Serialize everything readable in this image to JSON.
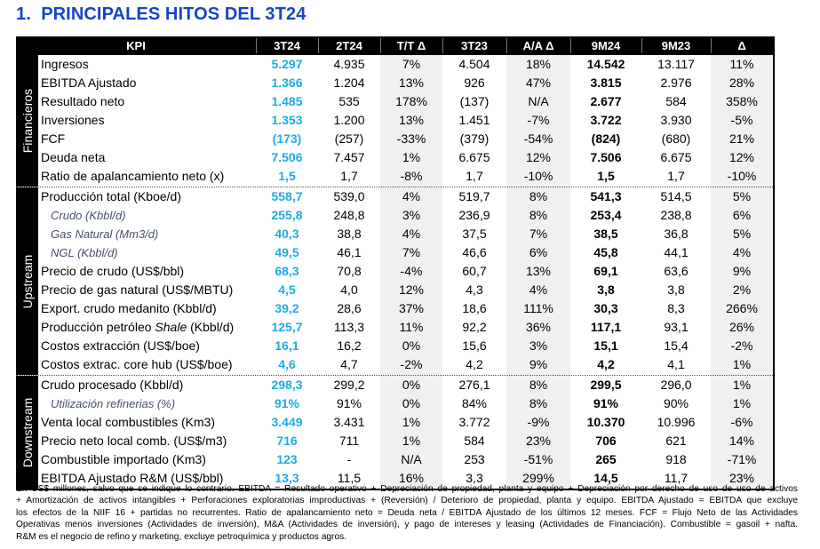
{
  "title": "1.  PRINCIPALES HITOS DEL 3T24",
  "columns": [
    "KPI",
    "3T24",
    "2T24",
    "T/T Δ",
    "3T23",
    "A/A Δ",
    "9M24",
    "9M23",
    "Δ"
  ],
  "sections": [
    {
      "name": "Financieros",
      "rows": [
        {
          "label": "Ingresos",
          "sub": false,
          "values": [
            "5.297",
            "4.935",
            "7%",
            "4.504",
            "18%",
            "14.542",
            "13.117",
            "11%"
          ]
        },
        {
          "label": "EBITDA Ajustado",
          "sub": false,
          "values": [
            "1.366",
            "1.204",
            "13%",
            "926",
            "47%",
            "3.815",
            "2.976",
            "28%"
          ]
        },
        {
          "label": "Resultado neto",
          "sub": false,
          "values": [
            "1.485",
            "535",
            "178%",
            "(137)",
            "N/A",
            "2.677",
            "584",
            "358%"
          ]
        },
        {
          "label": "Inversiones",
          "sub": false,
          "values": [
            "1.353",
            "1.200",
            "13%",
            "1.451",
            "-7%",
            "3.722",
            "3.930",
            "-5%"
          ]
        },
        {
          "label": "FCF",
          "sub": false,
          "values": [
            "(173)",
            "(257)",
            "-33%",
            "(379)",
            "-54%",
            "(824)",
            "(680)",
            "21%"
          ]
        },
        {
          "label": "Deuda neta",
          "sub": false,
          "values": [
            "7.506",
            "7.457",
            "1%",
            "6.675",
            "12%",
            "7.506",
            "6.675",
            "12%"
          ]
        },
        {
          "label": "Ratio de apalancamiento neto (x)",
          "sub": false,
          "values": [
            "1,5",
            "1,7",
            "-8%",
            "1,7",
            "-10%",
            "1,5",
            "1,7",
            "-10%"
          ]
        }
      ]
    },
    {
      "name": "Upstream",
      "rows": [
        {
          "label": "Producción total (Kboe/d)",
          "sub": false,
          "values": [
            "558,7",
            "539,0",
            "4%",
            "519,7",
            "8%",
            "541,3",
            "514,5",
            "5%"
          ]
        },
        {
          "label": "Crudo (Kbbl/d)",
          "sub": true,
          "values": [
            "255,8",
            "248,8",
            "3%",
            "236,9",
            "8%",
            "253,4",
            "238,8",
            "6%"
          ]
        },
        {
          "label": "Gas Natural (Mm3/d)",
          "sub": true,
          "values": [
            "40,3",
            "38,8",
            "4%",
            "37,5",
            "7%",
            "38,5",
            "36,8",
            "5%"
          ]
        },
        {
          "label": "NGL (Kbbl/d)",
          "sub": true,
          "values": [
            "49,5",
            "46,1",
            "7%",
            "46,6",
            "6%",
            "45,8",
            "44,1",
            "4%"
          ]
        },
        {
          "label": "Precio de crudo (US$/bbl)",
          "sub": false,
          "values": [
            "68,3",
            "70,8",
            "-4%",
            "60,7",
            "13%",
            "69,1",
            "63,6",
            "9%"
          ]
        },
        {
          "label": "Precio de gas natural (US$/MBTU)",
          "sub": false,
          "values": [
            "4,5",
            "4,0",
            "12%",
            "4,3",
            "4%",
            "3,8",
            "3,8",
            "2%"
          ]
        },
        {
          "label": "Export. crudo medanito (Kbbl/d)",
          "sub": false,
          "values": [
            "39,2",
            "28,6",
            "37%",
            "18,6",
            "111%",
            "30,3",
            "8,3",
            "266%"
          ]
        },
        {
          "label": "Producción petróleo ",
          "label_italic": "Shale",
          "label_suffix": " (Kbbl/d)",
          "sub": false,
          "values": [
            "125,7",
            "113,3",
            "11%",
            "92,2",
            "36%",
            "117,1",
            "93,1",
            "26%"
          ]
        },
        {
          "label": "Costos extracción (US$/boe)",
          "sub": false,
          "values": [
            "16,1",
            "16,2",
            "0%",
            "15,6",
            "3%",
            "15,1",
            "15,4",
            "-2%"
          ]
        },
        {
          "label": "Costos extrac. core hub (US$/boe)",
          "sub": false,
          "values": [
            "4,6",
            "4,7",
            "-2%",
            "4,2",
            "9%",
            "4,2",
            "4,1",
            "1%"
          ]
        }
      ]
    },
    {
      "name": "Downstream",
      "rows": [
        {
          "label": "Crudo procesado (Kbbl/d)",
          "sub": false,
          "values": [
            "298,3",
            "299,2",
            "0%",
            "276,1",
            "8%",
            "299,5",
            "296,0",
            "1%"
          ]
        },
        {
          "label": "Utilización refinerias (%)",
          "sub": true,
          "values": [
            "91%",
            "91%",
            "0%",
            "84%",
            "8%",
            "91%",
            "90%",
            "1%"
          ]
        },
        {
          "label": "Venta local combustibles (Km3)",
          "sub": false,
          "values": [
            "3.449",
            "3.431",
            "1%",
            "3.772",
            "-9%",
            "10.370",
            "10.996",
            "-6%"
          ]
        },
        {
          "label": "Precio neto local comb. (US$/m3)",
          "sub": false,
          "values": [
            "716",
            "711",
            "1%",
            "584",
            "23%",
            "706",
            "621",
            "14%"
          ]
        },
        {
          "label": "Combustible importado (Km3)",
          "sub": false,
          "values": [
            "123",
            "-",
            "N/A",
            "253",
            "-51%",
            "265",
            "918",
            "-71%"
          ]
        },
        {
          "label": "EBITDA Ajustado R&M (US$/bbl)",
          "sub": false,
          "values": [
            "13,3",
            "11,5",
            "16%",
            "3,3",
            "299%",
            "14,5",
            "11,7",
            "23%"
          ]
        }
      ]
    }
  ],
  "footnote_lines": [
    "En US$ millones, salvo que se indique lo contrario. EBITDA = Resultado operativo + Depreciación de propiedad, planta y equipo + Depreciación por derecho de uso de uso de activos",
    "+ Amortización de activos intangibles + Perforaciones exploratorias improductivas + (Reversión) / Deterioro de propiedad, planta y equipo. EBITDA Ajustado = EBITDA que excluye",
    "los efectos de la NIIF 16 + partidas no recurrentes. Ratio de apalancamiento neto = Deuda neta / EBITDA Ajustado de los últimos 12 meses. FCF = Flujo Neto de las Actividades",
    "Operativas menos inversiones (Actividades de inversión), M&A (Actividades de inversión), y pago de intereses y leasing (Actividades de Financiación). Combustible = gasoil + nafta.",
    "R&M es el negocio de refino y marketing, excluye petroquímica y productos agros."
  ],
  "colors": {
    "title": "#1545c8",
    "highlight_3t24": "#1eaae7",
    "header_bg": "#000000",
    "delta_shade": "#f0f0f0",
    "sub_label": "#44506a"
  }
}
